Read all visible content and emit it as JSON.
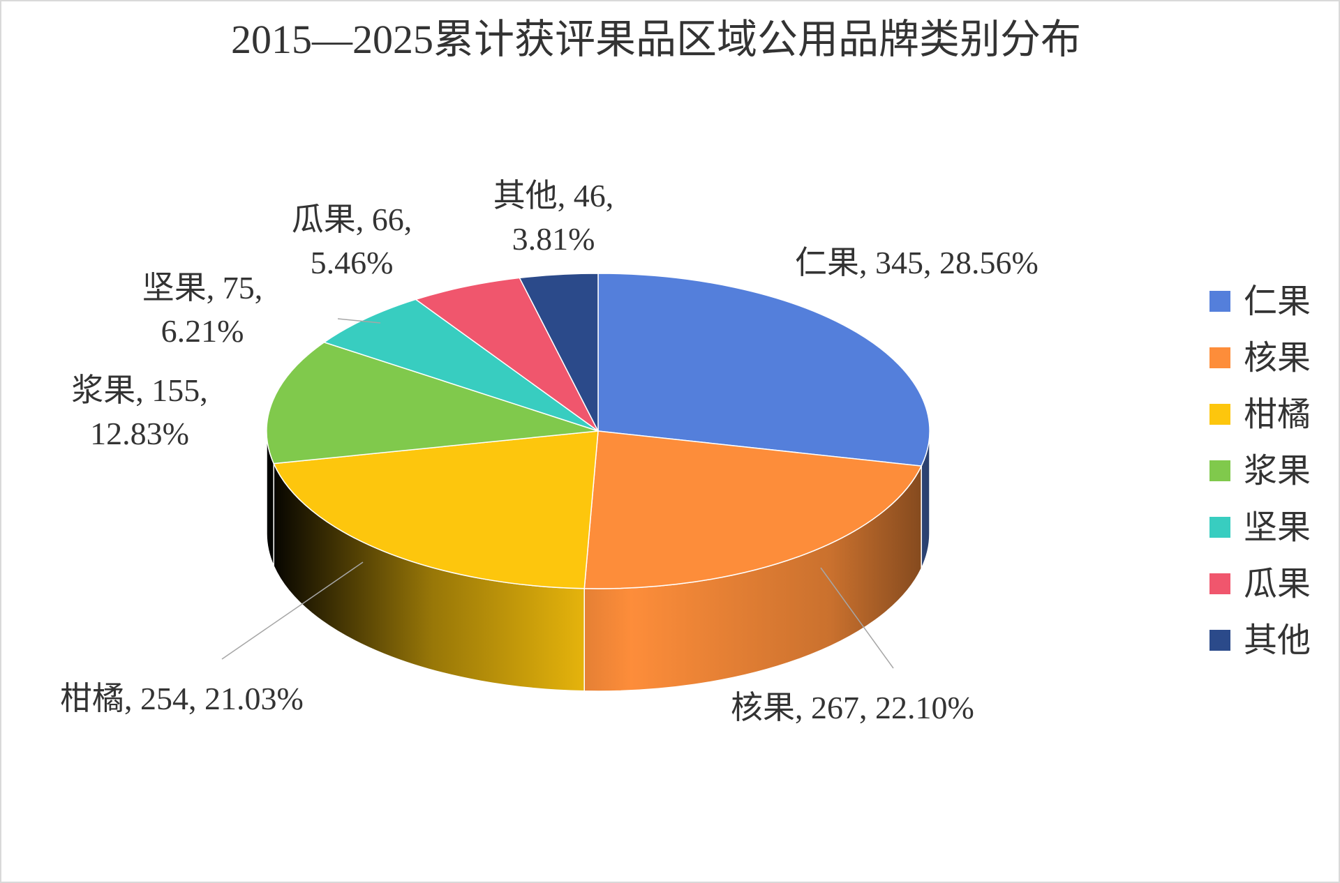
{
  "chart_data": {
    "type": "pie",
    "title": "2015—2025累计获评果品区域公用品牌类别分布",
    "categories": [
      "仁果",
      "核果",
      "柑橘",
      "浆果",
      "坚果",
      "瓜果",
      "其他"
    ],
    "values": [
      345,
      267,
      254,
      155,
      75,
      66,
      46
    ],
    "value_labels": [
      [
        "仁果, 345, 28.56%"
      ],
      [
        "核果, 267, 22.10%"
      ],
      [
        "柑橘, 254, 21.03%"
      ],
      [
        "浆果, 155,",
        "12.83%"
      ],
      [
        "坚果, 75,",
        "6.21%"
      ],
      [
        "瓜果, 66,",
        "5.46%"
      ],
      [
        "其他, 46,",
        "3.81%"
      ]
    ],
    "colors": [
      "#547fdb",
      "#fd8d3a",
      "#fdc60d",
      "#80c94c",
      "#38cdc0",
      "#f0566d",
      "#2b4a8a"
    ],
    "legend": "right",
    "three_d": true
  }
}
